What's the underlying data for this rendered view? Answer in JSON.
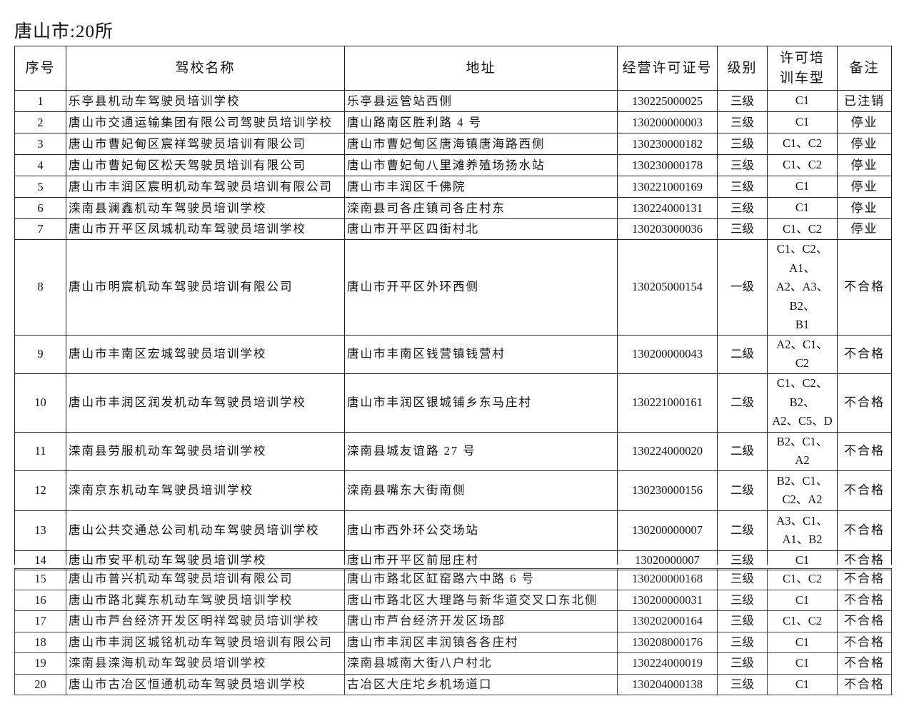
{
  "title": "唐山市:20所",
  "headers": [
    "序号",
    "驾校名称",
    "地址",
    "经营许可证号",
    "级别",
    "许可培\n训车型",
    "备注"
  ],
  "rows": [
    {
      "no": "1",
      "name": "乐亭县机动车驾驶员培训学校",
      "address": "乐亭县运管站西侧",
      "license": "130225000025",
      "level": "三级",
      "car_types": "C1",
      "note": "已注销"
    },
    {
      "no": "2",
      "name": "唐山市交通运输集团有限公司驾驶员培训学校",
      "address": "唐山路南区胜利路 4 号",
      "license": "130200000003",
      "level": "三级",
      "car_types": "C1",
      "note": "停业"
    },
    {
      "no": "3",
      "name": "唐山市曹妃甸区宸祥驾驶员培训有限公司",
      "address": "唐山市曹妃甸区唐海镇唐海路西侧",
      "license": "130230000182",
      "level": "三级",
      "car_types": "C1、C2",
      "note": "停业"
    },
    {
      "no": "4",
      "name": "唐山市曹妃甸区松天驾驶员培训有限公司",
      "address": "唐山市曹妃甸八里滩养殖场扬水站",
      "license": "130230000178",
      "level": "三级",
      "car_types": "C1、C2",
      "note": "停业"
    },
    {
      "no": "5",
      "name": "唐山市丰润区宸明机动车驾驶员培训有限公司",
      "address": "唐山市丰润区千佛院",
      "license": "130221000169",
      "level": "三级",
      "car_types": "C1",
      "note": "停业"
    },
    {
      "no": "6",
      "name": "滦南县澜鑫机动车驾驶员培训学校",
      "address": "滦南县司各庄镇司各庄村东",
      "license": "130224000131",
      "level": "三级",
      "car_types": "C1",
      "note": "停业"
    },
    {
      "no": "7",
      "name": "唐山市开平区凤城机动车驾驶员培训学校",
      "address": "唐山市开平区四街村北",
      "license": "130203000036",
      "level": "三级",
      "car_types": "C1、C2",
      "note": "停业"
    },
    {
      "no": "8",
      "name": "唐山市明宸机动车驾驶员培训有限公司",
      "address": "唐山市开平区外环西侧",
      "license": "130205000154",
      "level": "一级",
      "car_types": "C1、C2、\nA1、\nA2、A3、\nB2、\nB1",
      "note": "不合格"
    },
    {
      "no": "9",
      "name": "唐山市丰南区宏城驾驶员培训学校",
      "address": "唐山市丰南区钱营镇钱营村",
      "license": "130200000043",
      "level": "二级",
      "car_types": "A2、C1、\nC2",
      "note": "不合格"
    },
    {
      "no": "10",
      "name": "唐山市丰润区润发机动车驾驶员培训学校",
      "address": "唐山市丰润区银城铺乡东马庄村",
      "license": "130221000161",
      "level": "二级",
      "car_types": "C1、C2、\nB2、\nA2、C5、D",
      "note": "不合格"
    },
    {
      "no": "11",
      "name": "滦南县劳服机动车驾驶员培训学校",
      "address": "滦南县城友谊路 27 号",
      "license": "130224000020",
      "level": "二级",
      "car_types": "B2、C1、\nA2",
      "note": "不合格"
    },
    {
      "no": "12",
      "name": "滦南京东机动车驾驶员培训学校",
      "address": "滦南县嘴东大街南侧",
      "license": "130230000156",
      "level": "二级",
      "car_types": "B2、C1、\nC2、A2",
      "note": "不合格"
    },
    {
      "no": "13",
      "name": "唐山公共交通总公司机动车驾驶员培训学校",
      "address": "唐山市西外环公交场站",
      "license": "130200000007",
      "level": "二级",
      "car_types": "A3、C1、\nA1、B2",
      "note": "不合格"
    },
    {
      "no": "14",
      "name": "唐山市安平机动车驾驶员培训学校",
      "address": "唐山市开平区前屈庄村",
      "license": "13020000007",
      "level": "三级",
      "car_types": "C1",
      "note": "不合格"
    },
    {
      "no": "15",
      "name": "唐山市普兴机动车驾驶员培训有限公司",
      "address": "唐山市路北区缸窑路六中路 6 号",
      "license": "130200000168",
      "level": "三级",
      "car_types": "C1、C2",
      "note": "不合格"
    },
    {
      "no": "16",
      "name": "唐山市路北冀东机动车驾驶员培训学校",
      "address": "唐山市路北区大理路与新华道交叉口东北侧",
      "license": "130200000031",
      "level": "三级",
      "car_types": "C1",
      "note": "不合格"
    },
    {
      "no": "17",
      "name": "唐山市芦台经济开发区明祥驾驶员培训学校",
      "address": "唐山市芦台经济开发区场部",
      "license": "130202000164",
      "level": "三级",
      "car_types": "C1、C2",
      "note": "不合格"
    },
    {
      "no": "18",
      "name": "唐山市丰润区城铭机动车驾驶员培训有限公司",
      "address": "唐山市丰润区丰润镇各各庄村",
      "license": "130208000176",
      "level": "三级",
      "car_types": "C1",
      "note": "不合格"
    },
    {
      "no": "19",
      "name": "滦南县滦海机动车驾驶员培训学校",
      "address": "滦南县城南大街八户村北",
      "license": "130224000019",
      "level": "三级",
      "car_types": "C1",
      "note": "不合格"
    },
    {
      "no": "20",
      "name": "唐山市古冶区恒通机动车驾驶员培训学校",
      "address": "古冶区大庄坨乡机场道口",
      "license": "130204000138",
      "level": "三级",
      "car_types": "C1",
      "note": "不合格"
    }
  ]
}
